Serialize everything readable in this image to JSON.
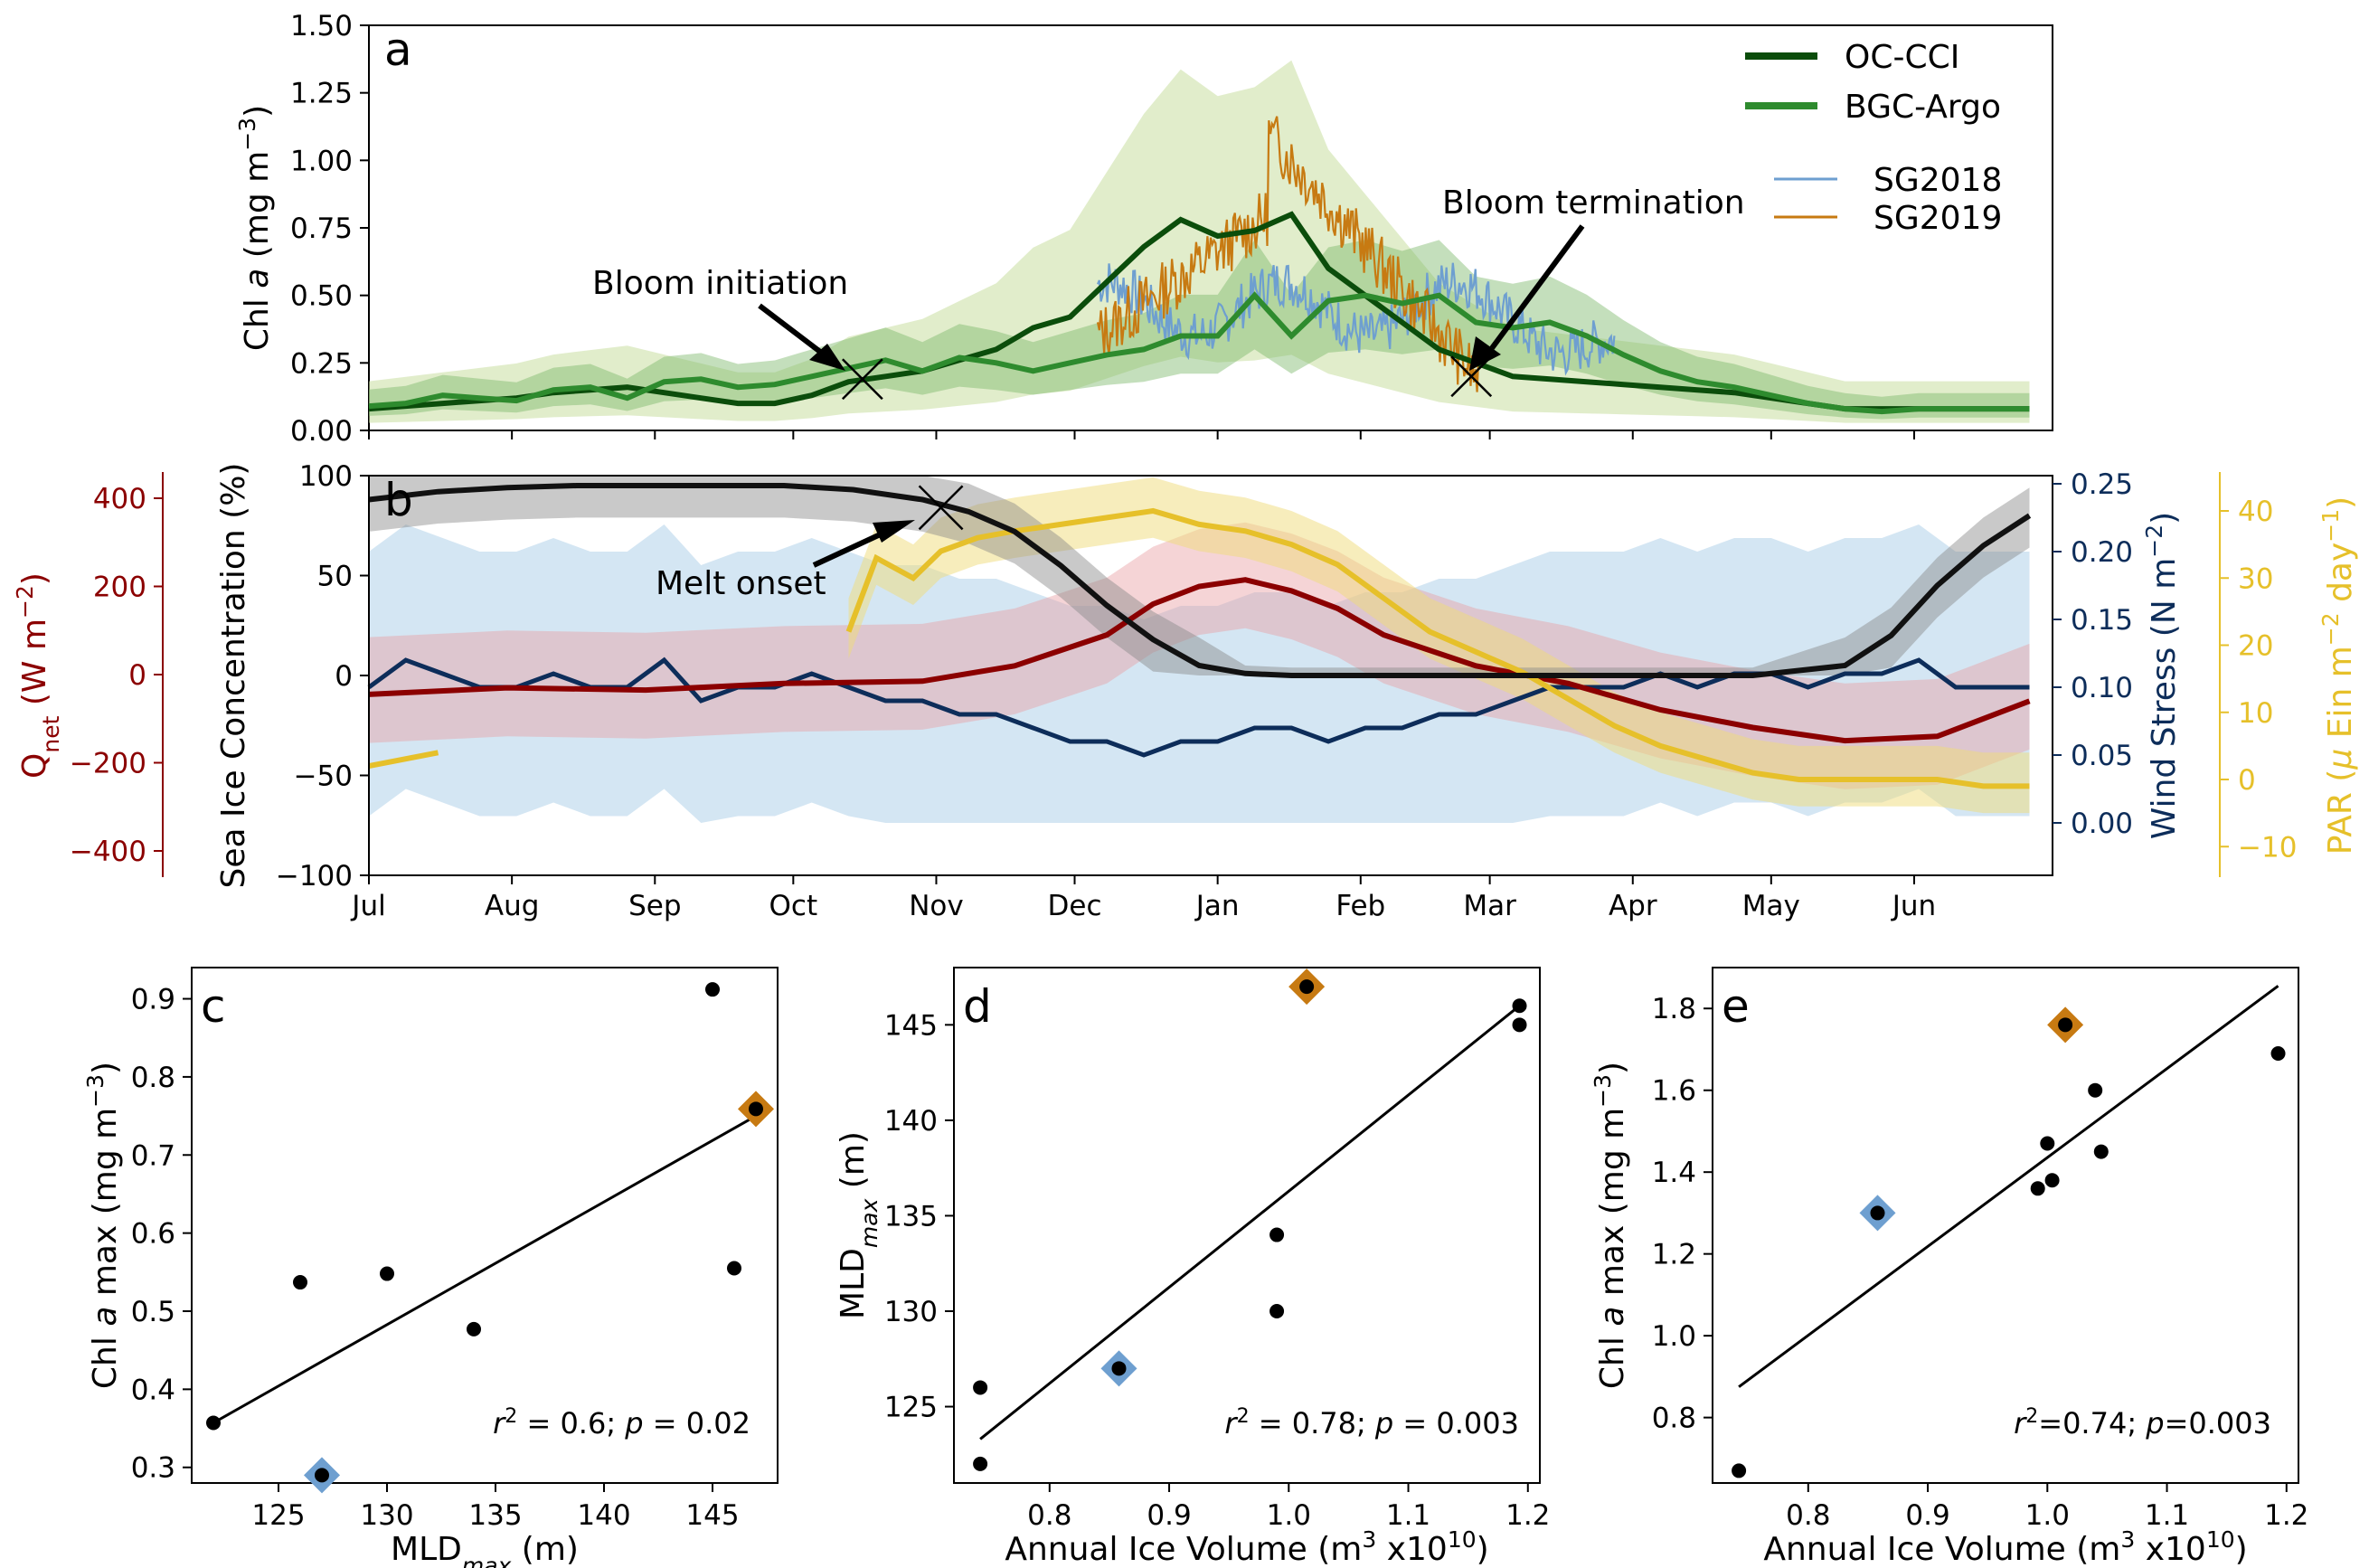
{
  "panel_a": {
    "label": "a",
    "ylabel_prefix": "Chl ",
    "ylabel_italic": "a",
    "ylabel_suffix": " (mg m",
    "ylabel_sup": "−3",
    "ylabel_end": ")",
    "yticks": [
      "0.00",
      "0.25",
      "0.50",
      "0.75",
      "1.00",
      "1.25",
      "1.50"
    ],
    "annotations": {
      "initiation": "Bloom initiation",
      "termination": "Bloom termination"
    },
    "legend": {
      "oc_cci": "OC-CCI",
      "bgc_argo": "BGC-Argo",
      "sg2018": "SG2018",
      "sg2019": "SG2019"
    }
  },
  "panel_b": {
    "label": "b",
    "left_label": "Sea Ice Concentration (%)",
    "left_ticks": [
      "−100",
      "−50",
      "0",
      "50",
      "100"
    ],
    "qnet_label_main": "Q",
    "qnet_label_sub": "net",
    "qnet_label_rest": " (W m",
    "qnet_label_sup": "−2",
    "qnet_label_end": ")",
    "qnet_ticks": [
      "−400",
      "−200",
      "0",
      "200",
      "400"
    ],
    "wind_label_main": "Wind Stress (N m",
    "wind_label_sup": "−2",
    "wind_label_end": ")",
    "wind_ticks": [
      "0.00",
      "0.05",
      "0.10",
      "0.15",
      "0.20",
      "0.25"
    ],
    "par_label_main": "PAR (",
    "par_label_mu": "μ",
    "par_label_mid": " Ein m",
    "par_label_sup1": "−2",
    "par_label_mid2": " day",
    "par_label_sup2": "−1",
    "par_label_end": ")",
    "par_ticks": [
      "−10",
      "0",
      "10",
      "20",
      "30",
      "40"
    ],
    "months": [
      "Jul",
      "Aug",
      "Sep",
      "Oct",
      "Nov",
      "Dec",
      "Jan",
      "Feb",
      "Mar",
      "Apr",
      "May",
      "Jun"
    ],
    "annotation": "Melt onset"
  },
  "panel_c": {
    "label": "c",
    "xlabel_main": "MLD",
    "xlabel_sub": "max",
    "xlabel_end": " (m)",
    "ylabel_prefix": "Chl ",
    "ylabel_italic": "a",
    "ylabel_suffix": " max (mg m",
    "ylabel_sup": "−3",
    "ylabel_end": ")",
    "xticks": [
      "125",
      "130",
      "135",
      "140",
      "145"
    ],
    "yticks": [
      "0.3",
      "0.4",
      "0.5",
      "0.6",
      "0.7",
      "0.8",
      "0.9"
    ],
    "stat_r": "r",
    "stat_sup": "2",
    "stat_mid": " = 0.6; ",
    "stat_p": "p",
    "stat_end": " = 0.02"
  },
  "panel_d": {
    "label": "d",
    "xlabel_main": "Annual Ice Volume (m",
    "xlabel_sup": "3",
    "xlabel_mid": " x10",
    "xlabel_sup2": "10",
    "xlabel_end": ")",
    "ylabel_main": "MLD",
    "ylabel_sub": "max",
    "ylabel_end": " (m)",
    "xticks": [
      "0.8",
      "0.9",
      "1.0",
      "1.1",
      "1.2"
    ],
    "yticks": [
      "125",
      "130",
      "135",
      "140",
      "145"
    ],
    "stat_r": "r",
    "stat_sup": "2",
    "stat_mid": " = 0.78; ",
    "stat_p": "p",
    "stat_end": " = 0.003"
  },
  "panel_e": {
    "label": "e",
    "xlabel_main": "Annual Ice Volume (m",
    "xlabel_sup": "3",
    "xlabel_mid": " x10",
    "xlabel_sup2": "10",
    "xlabel_end": ")",
    "ylabel_prefix": "Chl ",
    "ylabel_italic": "a",
    "ylabel_suffix": " max (mg m",
    "ylabel_sup": "−3",
    "ylabel_end": ")",
    "xticks": [
      "0.8",
      "0.9",
      "1.0",
      "1.1",
      "1.2"
    ],
    "yticks": [
      "0.8",
      "1.0",
      "1.2",
      "1.4",
      "1.6",
      "1.8"
    ],
    "stat_r": "r",
    "stat_sup": "2",
    "stat_mid": "=0.74; ",
    "stat_p": "p",
    "stat_end": "=0.003"
  },
  "colors": {
    "oc_cci": "#0b4d0b",
    "bgc_argo": "#2e8b2e",
    "oc_band": "#c8dfa0",
    "argo_band": "#7cb86a",
    "sg2018": "#6e9fd0",
    "sg2019": "#c77a12",
    "ice": "#111111",
    "qnet": "#8b0000",
    "wind": "#0d2d5a",
    "par": "#e6c02a",
    "qnet_band": "#e8a0a5",
    "wind_band": "#a9cde8",
    "par_band": "#f0dc7a"
  },
  "chart_data": [
    {
      "type": "line",
      "panel": "a",
      "x_unit": "days since 1 Jul",
      "ylim": [
        0,
        1.5
      ],
      "series": [
        {
          "name": "OC-CCI",
          "x": [
            0,
            8,
            16,
            24,
            32,
            40,
            48,
            56,
            64,
            72,
            80,
            88,
            96,
            104,
            112,
            120,
            128,
            136,
            144,
            152,
            160,
            168,
            176,
            184,
            192,
            200,
            208,
            216,
            224,
            232,
            240,
            248,
            256,
            264,
            272,
            280,
            288,
            296,
            304,
            312,
            320,
            328,
            336,
            344,
            352,
            360
          ],
          "values": [
            0.08,
            0.09,
            0.1,
            0.11,
            0.12,
            0.14,
            0.15,
            0.16,
            0.14,
            0.12,
            0.1,
            0.1,
            0.13,
            0.18,
            0.2,
            0.22,
            0.26,
            0.3,
            0.38,
            0.42,
            0.55,
            0.68,
            0.78,
            0.72,
            0.74,
            0.8,
            0.6,
            0.5,
            0.4,
            0.3,
            0.25,
            0.2,
            0.19,
            0.18,
            0.17,
            0.16,
            0.15,
            0.14,
            0.12,
            0.1,
            0.08,
            0.08,
            0.08,
            0.08,
            0.08,
            0.08
          ]
        },
        {
          "name": "BGC-Argo",
          "x": [
            0,
            8,
            16,
            24,
            32,
            40,
            48,
            56,
            64,
            72,
            80,
            88,
            96,
            104,
            112,
            120,
            128,
            136,
            144,
            152,
            160,
            168,
            176,
            184,
            192,
            200,
            208,
            216,
            224,
            232,
            240,
            248,
            256,
            264,
            272,
            280,
            288,
            296,
            304,
            312,
            320,
            328,
            336,
            344,
            352,
            360
          ],
          "values": [
            0.09,
            0.1,
            0.13,
            0.12,
            0.11,
            0.15,
            0.16,
            0.12,
            0.18,
            0.19,
            0.16,
            0.17,
            0.2,
            0.23,
            0.26,
            0.22,
            0.27,
            0.25,
            0.22,
            0.25,
            0.28,
            0.3,
            0.35,
            0.35,
            0.5,
            0.35,
            0.48,
            0.5,
            0.47,
            0.5,
            0.4,
            0.38,
            0.4,
            0.35,
            0.28,
            0.22,
            0.18,
            0.16,
            0.13,
            0.1,
            0.08,
            0.07,
            0.08,
            0.08,
            0.08,
            0.08
          ]
        }
      ]
    },
    {
      "type": "line",
      "panel": "b",
      "x_unit": "days since 1 Jul",
      "series": [
        {
          "name": "",
          "variable": "Sea Ice Concentration (%)",
          "x": [
            0,
            15,
            30,
            45,
            60,
            75,
            90,
            105,
            120,
            130,
            140,
            150,
            160,
            170,
            180,
            190,
            200,
            210,
            220,
            240,
            260,
            280,
            300,
            320,
            330,
            340,
            350,
            360
          ],
          "values": [
            88,
            92,
            94,
            95,
            95,
            95,
            95,
            93,
            88,
            82,
            72,
            55,
            35,
            18,
            5,
            1,
            0,
            0,
            0,
            0,
            0,
            0,
            0,
            5,
            20,
            45,
            65,
            80
          ]
        },
        {
          "name": "",
          "variable": "Q net (W m-2)",
          "x": [
            0,
            30,
            60,
            90,
            120,
            140,
            160,
            170,
            180,
            190,
            200,
            210,
            220,
            240,
            260,
            280,
            300,
            320,
            340,
            360
          ],
          "values": [
            -45,
            -30,
            -35,
            -20,
            -15,
            20,
            90,
            160,
            200,
            215,
            190,
            150,
            90,
            20,
            -20,
            -80,
            -120,
            -150,
            -140,
            -60
          ]
        },
        {
          "name": "",
          "variable": "Wind Stress (N m-2)",
          "x": [
            0,
            8,
            16,
            24,
            32,
            40,
            48,
            56,
            64,
            72,
            80,
            88,
            96,
            104,
            112,
            120,
            128,
            136,
            144,
            152,
            160,
            168,
            176,
            184,
            192,
            200,
            208,
            216,
            224,
            232,
            240,
            248,
            256,
            264,
            272,
            280,
            288,
            296,
            304,
            312,
            320,
            328,
            336,
            344,
            352,
            360
          ],
          "values": [
            0.1,
            0.12,
            0.11,
            0.1,
            0.1,
            0.11,
            0.1,
            0.1,
            0.12,
            0.09,
            0.1,
            0.1,
            0.11,
            0.1,
            0.09,
            0.09,
            0.08,
            0.08,
            0.07,
            0.06,
            0.06,
            0.05,
            0.06,
            0.06,
            0.07,
            0.07,
            0.06,
            0.07,
            0.07,
            0.08,
            0.08,
            0.09,
            0.1,
            0.1,
            0.1,
            0.11,
            0.1,
            0.11,
            0.11,
            0.1,
            0.11,
            0.11,
            0.12,
            0.1,
            0.1,
            0.1
          ]
        },
        {
          "name": "",
          "variable": "PAR (μ Ein m-2 day-1)",
          "x": [
            0,
            15,
            104,
            110,
            118,
            124,
            132,
            140,
            150,
            160,
            170,
            180,
            190,
            200,
            210,
            220,
            230,
            240,
            250,
            260,
            270,
            280,
            290,
            300,
            310,
            320,
            330,
            340,
            350,
            360
          ],
          "values": [
            2,
            4,
            22,
            33,
            30,
            34,
            36,
            37,
            38,
            39,
            40,
            38,
            37,
            35,
            32,
            27,
            22,
            19,
            16,
            12,
            8,
            5,
            3,
            1,
            0,
            0,
            0,
            0,
            -1,
            -1
          ]
        }
      ]
    },
    {
      "type": "scatter",
      "panel": "c",
      "xlabel": "MLDmax (m)",
      "ylabel": "Chl a max (mg m-3)",
      "xlim": [
        121,
        148
      ],
      "ylim": [
        0.28,
        0.94
      ],
      "points": [
        {
          "x": 122,
          "y": 0.357
        },
        {
          "x": 126,
          "y": 0.537
        },
        {
          "x": 130,
          "y": 0.548
        },
        {
          "x": 134,
          "y": 0.477
        },
        {
          "x": 145,
          "y": 0.912
        },
        {
          "x": 146,
          "y": 0.555
        },
        {
          "x": 147,
          "y": 0.759
        },
        {
          "x": 127,
          "y": 0.29
        }
      ],
      "highlight": [
        {
          "name": "SG2018",
          "x": 127,
          "y": 0.29
        },
        {
          "name": "SG2019",
          "x": 147,
          "y": 0.759
        }
      ],
      "fit": {
        "x": [
          122,
          147
        ],
        "y": [
          0.357,
          0.75
        ]
      }
    },
    {
      "type": "scatter",
      "panel": "d",
      "xlabel": "Annual Ice Volume (m3 x10^10)",
      "ylabel": "MLDmax (m)",
      "xlim": [
        0.72,
        1.21
      ],
      "ylim": [
        121,
        148
      ],
      "points": [
        {
          "x": 0.742,
          "y": 122
        },
        {
          "x": 0.742,
          "y": 126
        },
        {
          "x": 0.858,
          "y": 127
        },
        {
          "x": 0.99,
          "y": 130
        },
        {
          "x": 0.99,
          "y": 134
        },
        {
          "x": 1.015,
          "y": 147
        },
        {
          "x": 1.193,
          "y": 145
        },
        {
          "x": 1.193,
          "y": 146
        }
      ],
      "highlight": [
        {
          "name": "SG2018",
          "x": 0.858,
          "y": 127
        },
        {
          "name": "SG2019",
          "x": 1.015,
          "y": 147
        }
      ],
      "fit": {
        "x": [
          0.742,
          1.193
        ],
        "y": [
          123.3,
          146
        ]
      }
    },
    {
      "type": "scatter",
      "panel": "e",
      "xlabel": "Annual Ice Volume (m3 x10^10)",
      "ylabel": "Chl a max (mg m-3)",
      "xlim": [
        0.72,
        1.21
      ],
      "ylim": [
        0.64,
        1.9
      ],
      "points": [
        {
          "x": 0.742,
          "y": 0.67
        },
        {
          "x": 0.858,
          "y": 1.3
        },
        {
          "x": 0.992,
          "y": 1.36
        },
        {
          "x": 1.0,
          "y": 1.47
        },
        {
          "x": 1.004,
          "y": 1.38
        },
        {
          "x": 1.015,
          "y": 1.76
        },
        {
          "x": 1.04,
          "y": 1.6
        },
        {
          "x": 1.045,
          "y": 1.45
        },
        {
          "x": 1.193,
          "y": 1.69
        }
      ],
      "highlight": [
        {
          "name": "SG2018",
          "x": 0.858,
          "y": 1.3
        },
        {
          "name": "SG2019",
          "x": 1.015,
          "y": 1.76
        }
      ],
      "fit": {
        "x": [
          0.742,
          1.193
        ],
        "y": [
          0.875,
          1.855
        ]
      }
    }
  ]
}
